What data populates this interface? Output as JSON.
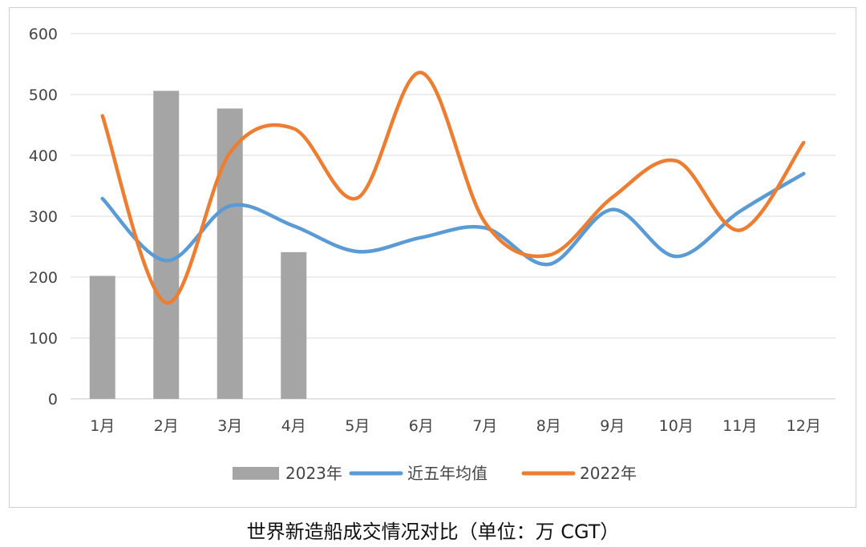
{
  "caption": "世界新造船成交情况对比（单位：万 CGT）",
  "chart_data": {
    "type": "bar+line",
    "categories": [
      "1月",
      "2月",
      "3月",
      "4月",
      "5月",
      "6月",
      "7月",
      "8月",
      "9月",
      "10月",
      "11月",
      "12月"
    ],
    "ylim": [
      0,
      600
    ],
    "yticks": [
      0,
      100,
      200,
      300,
      400,
      500,
      600
    ],
    "grid": true,
    "legend_position": "bottom",
    "series": [
      {
        "name": "2023年",
        "type": "bar",
        "color": "#a5a5a5",
        "values": [
          202,
          506,
          477,
          241,
          null,
          null,
          null,
          null,
          null,
          null,
          null,
          null
        ]
      },
      {
        "name": "近五年均值",
        "type": "line",
        "color": "#5b9bd5",
        "values": [
          329,
          227,
          317,
          284,
          242,
          265,
          281,
          221,
          311,
          234,
          308,
          370
        ]
      },
      {
        "name": "2022年",
        "type": "line",
        "color": "#ed7d31",
        "values": [
          465,
          158,
          404,
          444,
          330,
          536,
          290,
          236,
          331,
          391,
          277,
          421
        ]
      }
    ]
  }
}
